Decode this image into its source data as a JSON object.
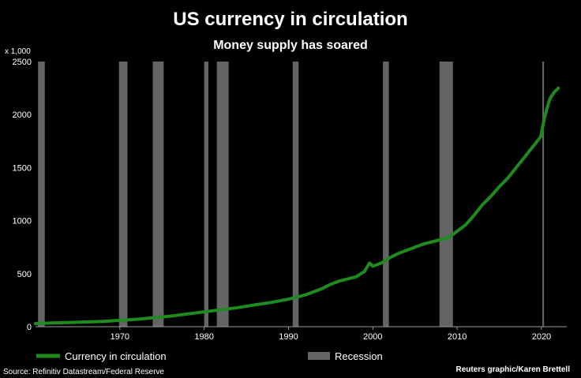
{
  "chart_data": {
    "type": "line",
    "title": "US currency in circulation",
    "subtitle": "Money supply has soared",
    "y_unit_label": "x 1,000",
    "xlim": [
      1960,
      2023
    ],
    "ylim": [
      0,
      2500
    ],
    "x_ticks": [
      1970,
      1980,
      1990,
      2000,
      2010,
      2020
    ],
    "y_ticks": [
      0,
      500,
      1000,
      1500,
      2000,
      2500
    ],
    "grid": false,
    "legend_position": "bottom",
    "series": [
      {
        "name": "Currency in circulation",
        "color": "#1f8a1f",
        "x": [
          1960,
          1962,
          1964,
          1966,
          1968,
          1970,
          1972,
          1974,
          1976,
          1978,
          1980,
          1982,
          1984,
          1986,
          1988,
          1990,
          1992,
          1994,
          1995,
          1996,
          1998,
          1999,
          1999.6,
          2000,
          2001,
          2002,
          2003,
          2004,
          2005,
          2006,
          2007,
          2008,
          2009,
          2010,
          2011,
          2012,
          2013,
          2014,
          2015,
          2016,
          2017,
          2018,
          2019,
          2019.9,
          2020.3,
          2020.7,
          2021,
          2021.5,
          2022
        ],
        "y": [
          30,
          35,
          40,
          45,
          50,
          60,
          70,
          85,
          100,
          120,
          140,
          160,
          180,
          205,
          230,
          260,
          300,
          360,
          400,
          430,
          470,
          520,
          600,
          570,
          600,
          650,
          690,
          720,
          750,
          780,
          800,
          820,
          840,
          900,
          960,
          1050,
          1150,
          1230,
          1320,
          1400,
          1500,
          1600,
          1700,
          1790,
          1950,
          2070,
          2150,
          2210,
          2250
        ]
      }
    ],
    "recessions": [
      {
        "start": 1960.3,
        "end": 1961.1
      },
      {
        "start": 1969.9,
        "end": 1970.9
      },
      {
        "start": 1973.9,
        "end": 1975.2
      },
      {
        "start": 1980.0,
        "end": 1980.5
      },
      {
        "start": 1981.5,
        "end": 1982.9
      },
      {
        "start": 1990.5,
        "end": 1991.2
      },
      {
        "start": 2001.2,
        "end": 2001.9
      },
      {
        "start": 2007.9,
        "end": 2009.5
      },
      {
        "start": 2020.1,
        "end": 2020.3
      }
    ],
    "recession_color": "#646464",
    "legend": {
      "line_label": "Currency in circulation",
      "bar_label": "Recession"
    },
    "footer_source": "Source: Refinitiv Datastream/Federal Reserve",
    "footer_credit": "Reuters graphic/Karen Brettell"
  }
}
